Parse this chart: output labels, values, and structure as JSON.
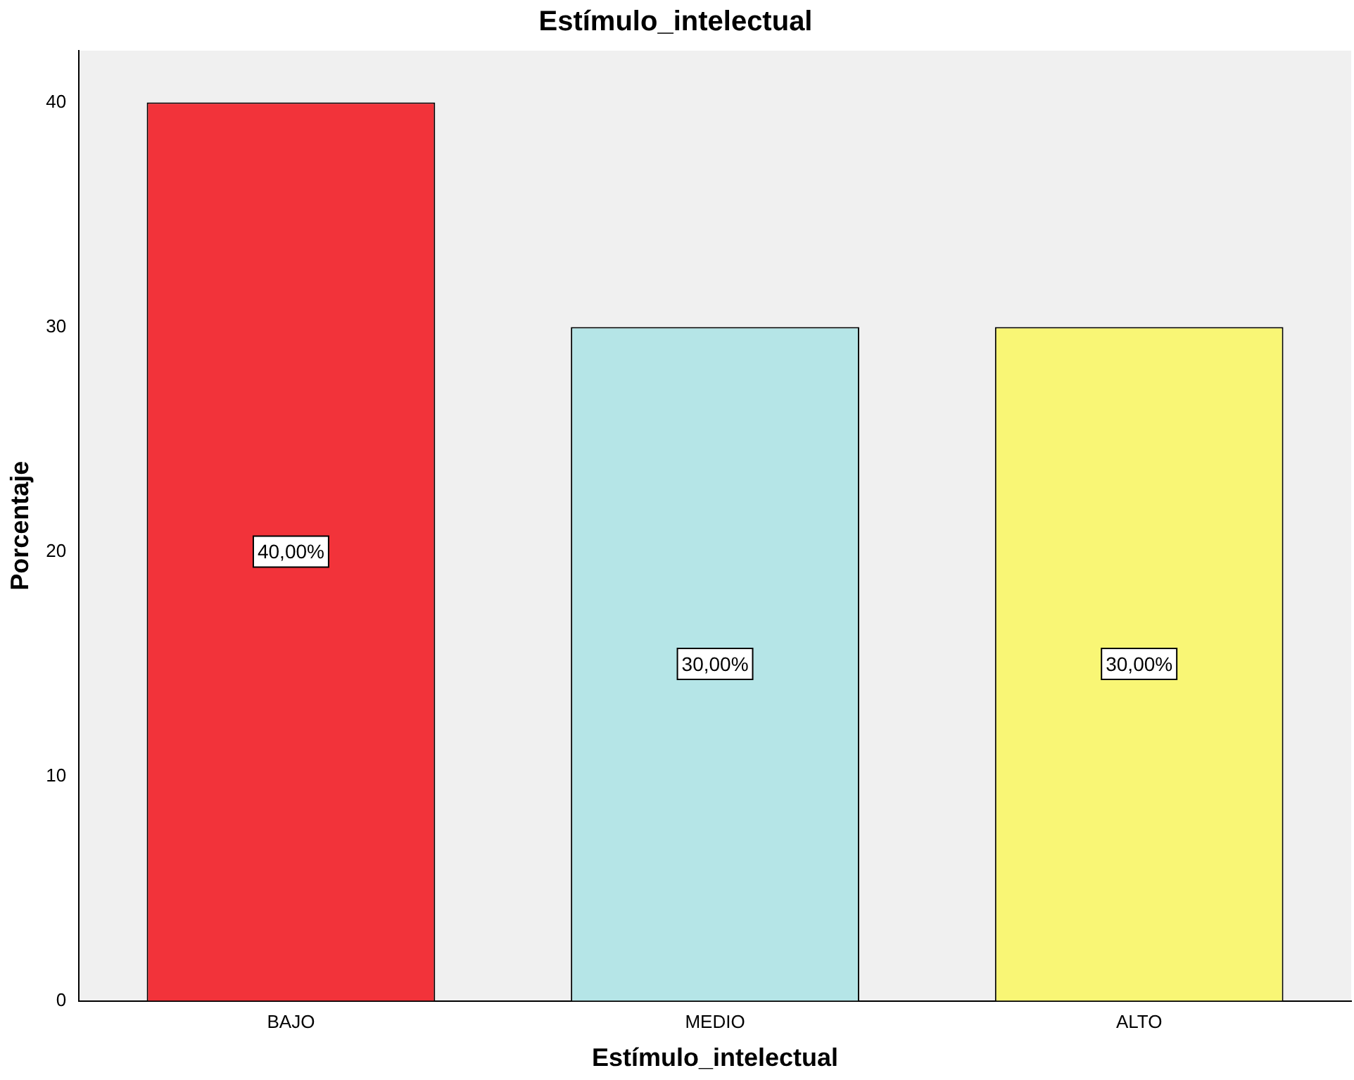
{
  "chart_data": {
    "type": "bar",
    "title": "Estímulo_intelectual",
    "xlabel": "Estímulo_intelectual",
    "ylabel": "Porcentaje",
    "categories": [
      "BAJO",
      "MEDIO",
      "ALTO"
    ],
    "values": [
      40,
      30,
      30
    ],
    "colors": [
      "#f2333a",
      "#b5e5e7",
      "#f9f675"
    ],
    "value_labels": [
      "40,00%",
      "30,00%",
      "30,00%"
    ],
    "ylim": [
      0,
      42.3
    ],
    "yticks": [
      0,
      10,
      20,
      30,
      40
    ],
    "grid": false,
    "legend": false
  }
}
